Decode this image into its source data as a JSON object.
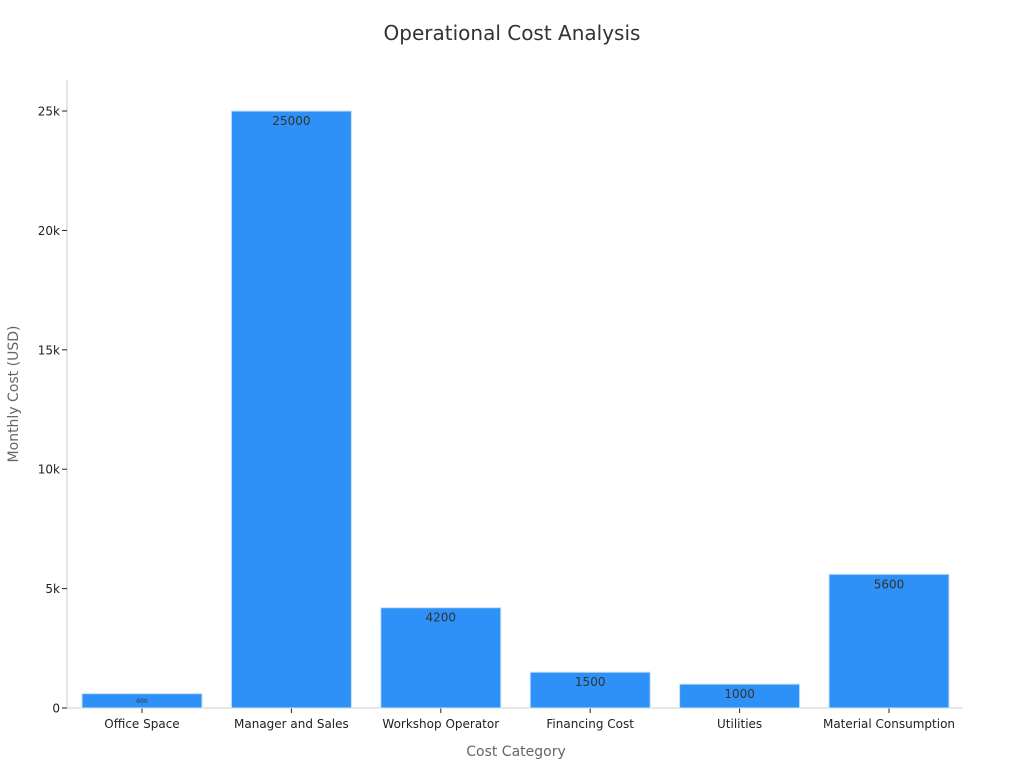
{
  "chart_data": {
    "type": "bar",
    "title": "Operational Cost Analysis",
    "xlabel": "Cost Category",
    "ylabel": "Monthly Cost (USD)",
    "categories": [
      "Office Space",
      "Manager and Sales",
      "Workshop Operator",
      "Financing Cost",
      "Utilities",
      "Material Consumption"
    ],
    "values": [
      600,
      25000,
      4200,
      1500,
      1000,
      5600
    ],
    "data_labels": [
      "600",
      "25000",
      "4200",
      "1500",
      "1000",
      "5600"
    ],
    "ylim": [
      0,
      26300
    ],
    "yticks": [
      0,
      5000,
      10000,
      15000,
      20000,
      25000
    ],
    "ytick_labels": [
      "0",
      "5k",
      "10k",
      "15k",
      "20k",
      "25k"
    ],
    "grid": false,
    "legend": "none",
    "colors": {
      "bar": "#2e91f7",
      "bar_edge": "#c9e0f7",
      "title": "#333333",
      "axis_label": "#666666",
      "tick_label": "#222222",
      "spine": "#cccccc",
      "data_label": "#333333"
    }
  }
}
